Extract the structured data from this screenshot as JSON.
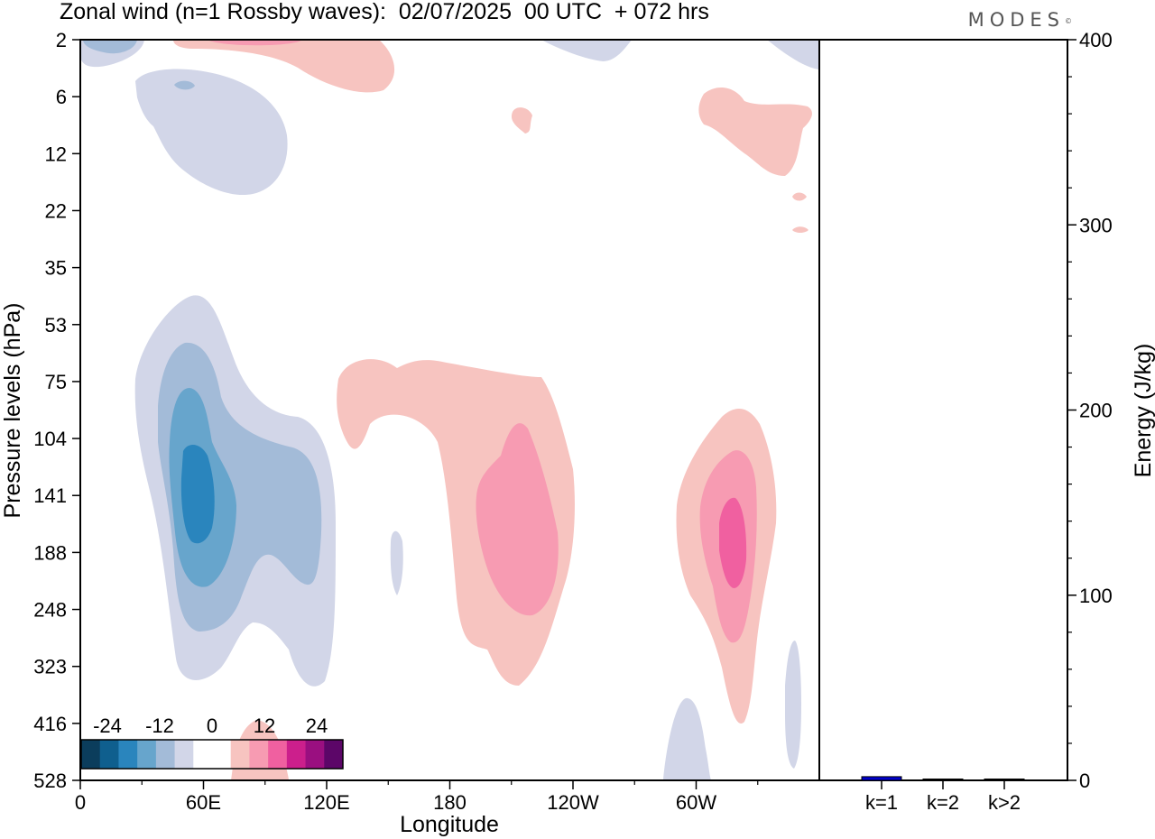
{
  "page": {
    "title": "Zonal wind (n=1 Rossby waves):  02/07/2025  00 UTC  + 072 hrs",
    "brand": "MODES",
    "brand_mark": "©"
  },
  "chart_data": [
    {
      "type": "heatmap",
      "name": "zonal-wind-contour",
      "xlabel": "Longitude",
      "ylabel": "Pressure levels (hPa)",
      "x_ticks": [
        "0",
        "60E",
        "120E",
        "180",
        "120W",
        "60W"
      ],
      "x_tick_values": [
        0,
        60,
        120,
        180,
        240,
        300
      ],
      "xlim": [
        0,
        360
      ],
      "y_ticks": [
        "2",
        "6",
        "12",
        "22",
        "35",
        "53",
        "75",
        "104",
        "141",
        "188",
        "248",
        "323",
        "416",
        "528"
      ],
      "colorbar": {
        "labels": [
          "-24",
          "-12",
          "0",
          "12",
          "24"
        ],
        "label_levels": [
          -24,
          -12,
          0,
          12,
          24
        ],
        "range": [
          -30,
          30
        ],
        "colors": [
          "#0b3d5c",
          "#0f5f8e",
          "#2a85bd",
          "#67a5cc",
          "#a3bbd8",
          "#d2d6e8",
          "#ffffff",
          "#ffffff",
          "#f7c4c0",
          "#f79bb2",
          "#f060a0",
          "#cc1f8c",
          "#9a0f80",
          "#5c0668"
        ]
      },
      "regions": [
        {
          "name": "negative-stratosphere-top",
          "level": -4,
          "color": "#d2d6e8"
        },
        {
          "name": "negative-stratosphere-core",
          "level": -8,
          "color": "#a3bbd8"
        },
        {
          "name": "positive-stratosphere-top",
          "level": 4,
          "color": "#f7c4c0"
        },
        {
          "name": "positive-stratosphere-core",
          "level": 8,
          "color": "#f79bb2"
        },
        {
          "name": "negative-upper-tropo-60e",
          "level": -24,
          "color": "#2a85bd"
        },
        {
          "name": "positive-upper-tropo-150w",
          "level": 8,
          "color": "#f79bb2"
        },
        {
          "name": "positive-upper-tropo-50w",
          "level": 12,
          "color": "#f060a0"
        }
      ]
    },
    {
      "type": "bar",
      "name": "energy-spectrum",
      "categories": [
        "k=1",
        "k=2",
        "k>2"
      ],
      "values": [
        2,
        0.5,
        0.5
      ],
      "ylabel": "Energy (J/kg)",
      "ylim": [
        0,
        400
      ],
      "y_ticks": [
        "0",
        "100",
        "200",
        "300",
        "400"
      ],
      "y_tick_values": [
        0,
        100,
        200,
        300,
        400
      ],
      "bar_colors": [
        "#0000cc",
        "#000000",
        "#000000"
      ]
    }
  ]
}
